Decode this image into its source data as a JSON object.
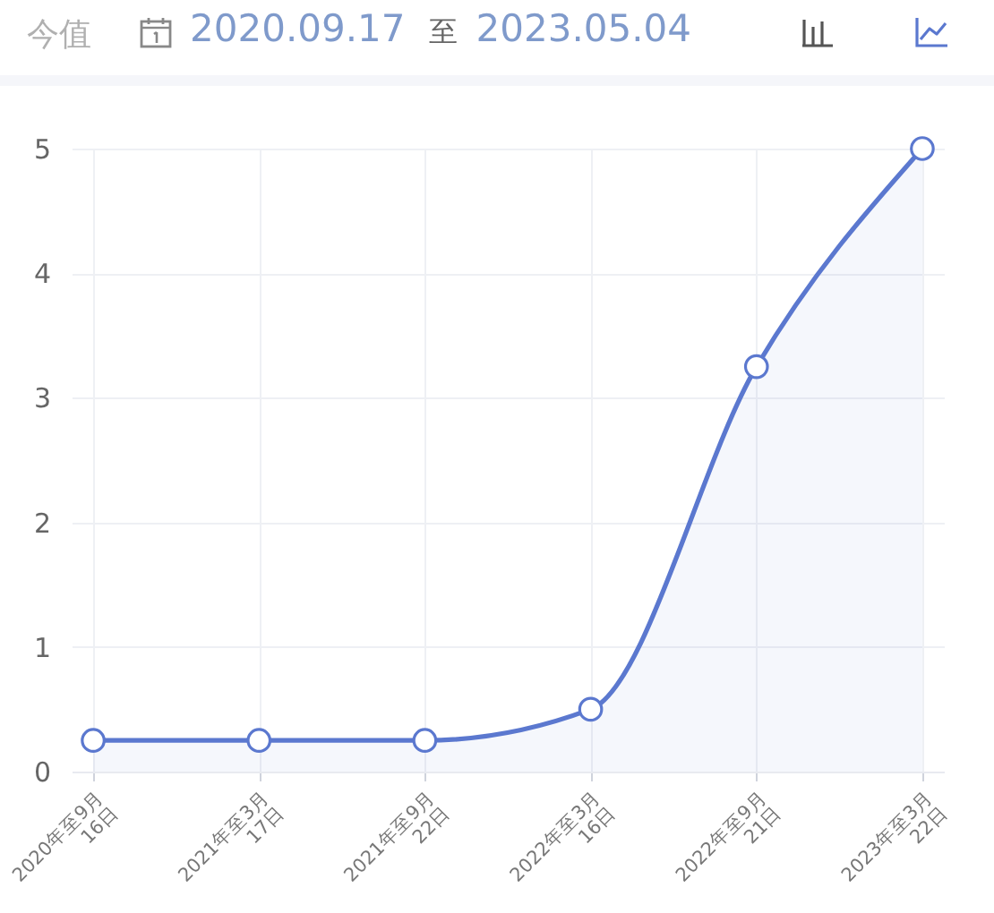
{
  "chart_data": {
    "type": "area",
    "title": "今值",
    "subtitle": "2020.09.17 至 2023.05.04",
    "categories": [
      "2020年至9月\n16日",
      "2021年至3月\n17日",
      "2021年至9月\n22日",
      "2022年至3月\n16日",
      "2022年至9月\n21日",
      "2023年至3月\n22日"
    ],
    "values": [
      0.25,
      0.25,
      0.25,
      0.5,
      3.25,
      5
    ],
    "color": "#5b78cf",
    "ylim": [
      0,
      5
    ],
    "yticks": [
      0,
      1,
      2,
      3,
      4,
      5
    ],
    "grid": true,
    "marker": "circle",
    "line_style": "solid"
  }
}
